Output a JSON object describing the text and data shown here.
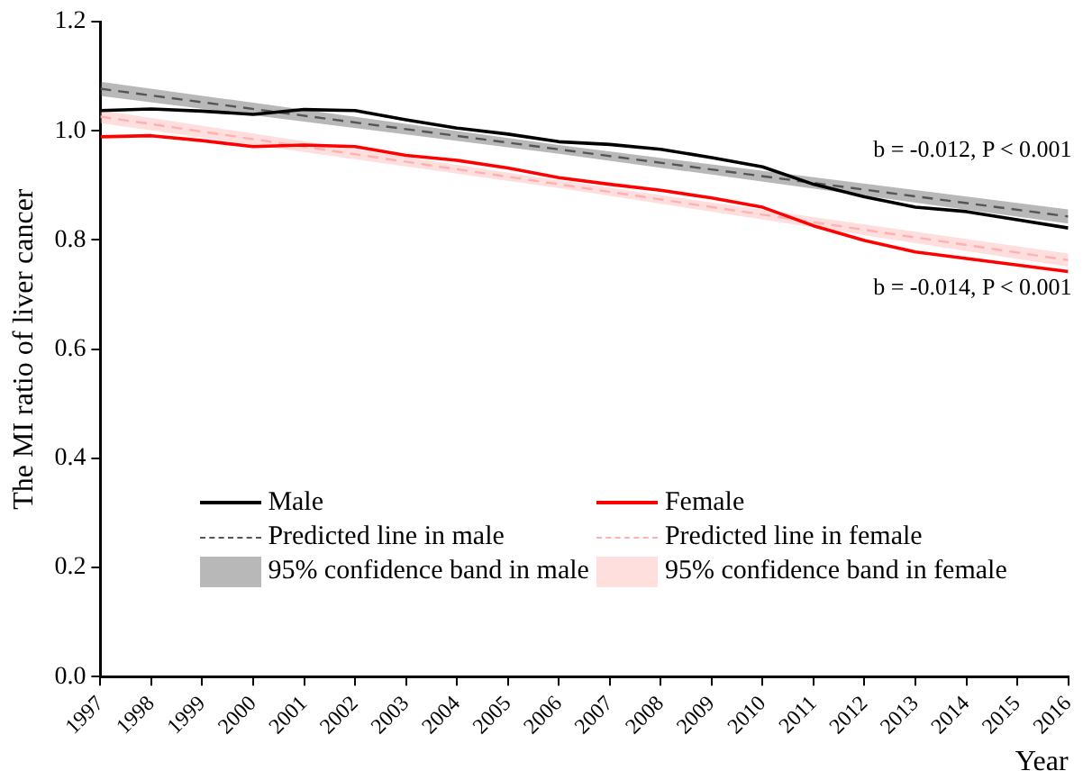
{
  "chart_data": {
    "type": "line",
    "xlabel": "Year",
    "ylabel": "The MI ratio of liver cancer",
    "x": [
      1997,
      1998,
      1999,
      2000,
      2001,
      2002,
      2003,
      2004,
      2005,
      2006,
      2007,
      2008,
      2009,
      2010,
      2011,
      2012,
      2013,
      2014,
      2015,
      2016
    ],
    "xlim": [
      1997,
      2016
    ],
    "xticks": [
      1997,
      1998,
      1999,
      2000,
      2001,
      2002,
      2003,
      2004,
      2005,
      2006,
      2007,
      2008,
      2009,
      2010,
      2011,
      2012,
      2013,
      2014,
      2015,
      2016
    ],
    "ylim": [
      0,
      1.2
    ],
    "yticks": [
      {
        "value": 0,
        "label": "0.0"
      },
      {
        "value": 0.2,
        "label": "0.2"
      },
      {
        "value": 0.4,
        "label": "0.4"
      },
      {
        "value": 0.6,
        "label": "0.6"
      },
      {
        "value": 0.8,
        "label": "0.8"
      },
      {
        "value": 1,
        "label": "1.0"
      },
      {
        "value": 1.2,
        "label": "1.2"
      }
    ],
    "grid": false,
    "legend": "bottom left",
    "marker": "none",
    "series": [
      {
        "name": "Male",
        "color": "#000000",
        "line_style": "solid",
        "values": [
          1.037,
          1.04,
          1.036,
          1.03,
          1.039,
          1.037,
          1.02,
          1.005,
          0.994,
          0.98,
          0.975,
          0.966,
          0.951,
          0.934,
          0.902,
          0.879,
          0.86,
          0.852,
          0.837,
          0.822
        ]
      },
      {
        "name": "Female",
        "color": "#ff0000",
        "line_style": "solid",
        "values": [
          0.989,
          0.991,
          0.982,
          0.971,
          0.974,
          0.971,
          0.955,
          0.946,
          0.932,
          0.914,
          0.902,
          0.891,
          0.877,
          0.86,
          0.826,
          0.799,
          0.778,
          0.766,
          0.754,
          0.742
        ]
      },
      {
        "name": "Predicted line in male",
        "color": "#555555",
        "line_style": "dashed",
        "x": [
          1997,
          2006,
          2016
        ],
        "values": [
          1.077,
          0.966,
          0.843
        ],
        "lower": [
          1.064,
          0.958,
          0.83
        ],
        "upper": [
          1.09,
          0.974,
          0.856
        ]
      },
      {
        "name": "Predicted line in female",
        "color": "#ffb0b0",
        "line_style": "dashed",
        "x": [
          1997,
          2006,
          2016
        ],
        "values": [
          1.026,
          0.902,
          0.763
        ],
        "lower": [
          1.014,
          0.895,
          0.751
        ],
        "upper": [
          1.038,
          0.909,
          0.775
        ]
      }
    ],
    "annotations": [
      "b = -0.012, P < 0.001",
      "b = -0.014, P < 0.001",
      "95% confidence band in male",
      "95% confidence band in female"
    ]
  }
}
